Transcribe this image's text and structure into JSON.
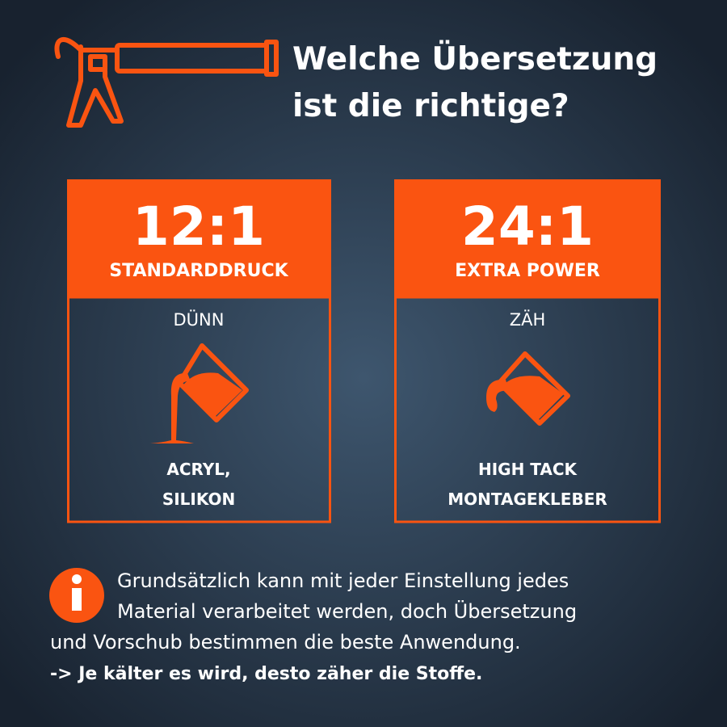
{
  "title": {
    "lines": [
      "Welche Übersetzung",
      "ist die richtige?"
    ]
  },
  "cards": [
    {
      "ratio": "12:1",
      "label": "STANDARDDRUCK",
      "consistency": "DÜNN",
      "materials": [
        "ACRYL,",
        "SILIKON"
      ]
    },
    {
      "ratio": "24:1",
      "label": "EXTRA POWER",
      "consistency": "ZÄH",
      "materials": [
        "HIGH TACK",
        "MONTAGEKLEBER"
      ]
    }
  ],
  "info": {
    "lines": [
      "Grundsätzlich kann mit jeder Einstellung jedes",
      "Material verarbeitet werden, doch Übersetzung",
      "und Vorschub bestimmen die beste Anwendung."
    ],
    "note": "-> Je kälter es wird, desto zäher die Stoffe."
  }
}
